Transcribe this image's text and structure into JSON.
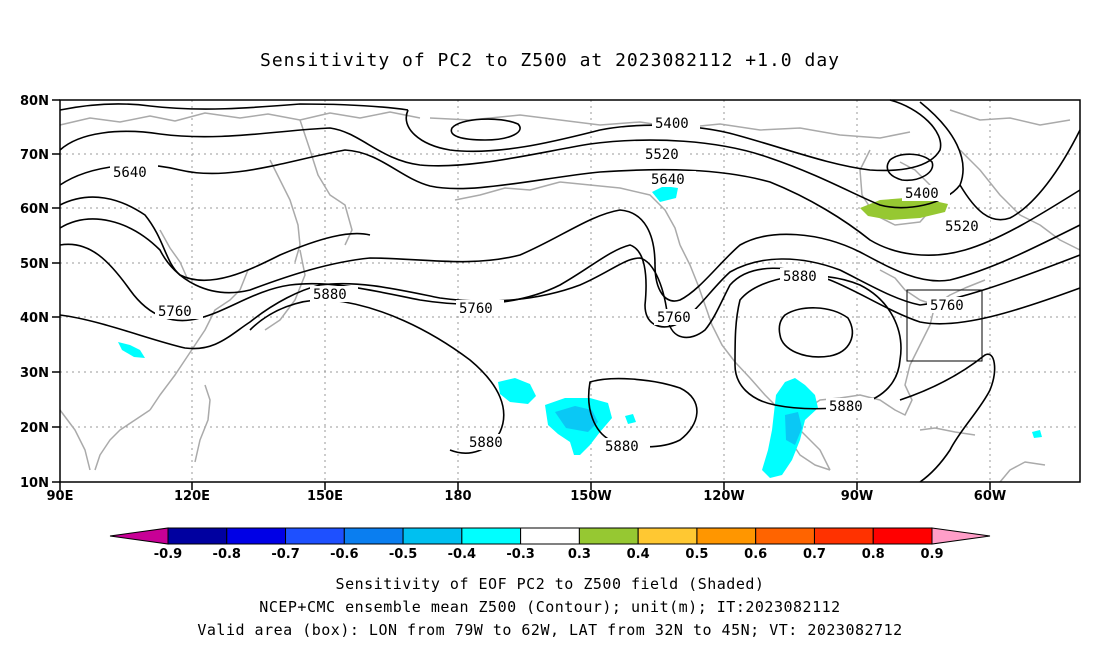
{
  "title": "Sensitivity of PC2 to Z500 at 2023082112 +1.0 day",
  "lat_labels": [
    "80N",
    "70N",
    "60N",
    "50N",
    "40N",
    "30N",
    "20N",
    "10N"
  ],
  "lon_labels": [
    "90E",
    "120E",
    "150E",
    "180",
    "150W",
    "120W",
    "90W",
    "60W"
  ],
  "contour_labels": [
    {
      "text": "5400"
    },
    {
      "text": "5400"
    },
    {
      "text": "5520"
    },
    {
      "text": "5520"
    },
    {
      "text": "5640"
    },
    {
      "text": "5640"
    },
    {
      "text": "5760"
    },
    {
      "text": "5760"
    },
    {
      "text": "5760"
    },
    {
      "text": "5760"
    },
    {
      "text": "5880"
    },
    {
      "text": "5880"
    },
    {
      "text": "5880"
    },
    {
      "text": "5880"
    },
    {
      "text": "5880"
    }
  ],
  "colorbar": {
    "colors": [
      "#c80096",
      "#0000a0",
      "#0000e6",
      "#1e50ff",
      "#0a7ef0",
      "#00c0f0",
      "#00ffff",
      "#ffffff",
      "#96c832",
      "#ffc832",
      "#ff9600",
      "#ff6400",
      "#ff3200",
      "#ff0000",
      "#ff9ec8"
    ],
    "labels": [
      "-0.9",
      "-0.8",
      "-0.7",
      "-0.6",
      "-0.5",
      "-0.4",
      "-0.3",
      "0.3",
      "0.4",
      "0.5",
      "0.6",
      "0.7",
      "0.8",
      "0.9"
    ]
  },
  "valid_box": {
    "lon_min": -79,
    "lon_max": -62,
    "lat_min": 32,
    "lat_max": 45
  },
  "captions": [
    "Sensitivity of EOF PC2 to Z500 field (Shaded)",
    "NCEP+CMC ensemble mean Z500 (Contour); unit(m); IT:2023082112",
    "Valid area (box): LON from 79W to 62W, LAT from 32N to 45N; VT: 2023082712"
  ]
}
